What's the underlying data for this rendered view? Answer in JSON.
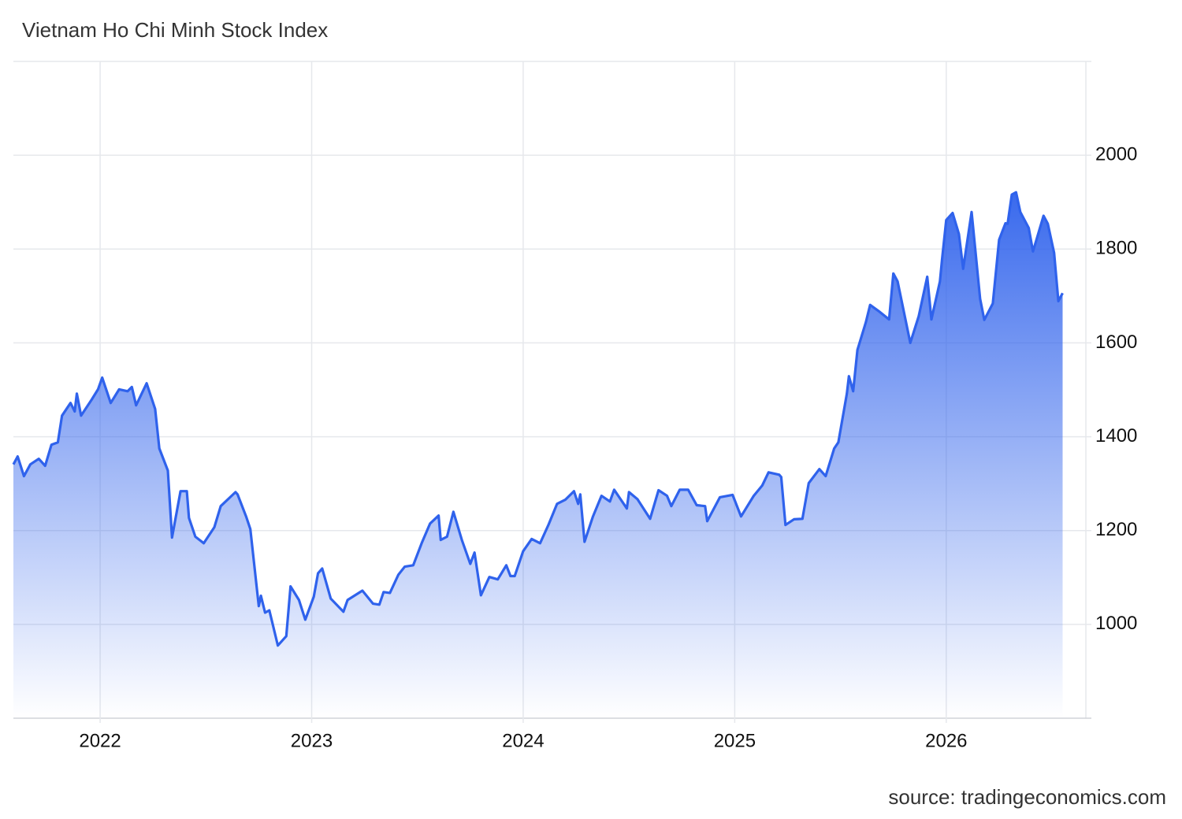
{
  "chart_data": {
    "type": "area",
    "title": "Vietnam Ho Chi Minh Stock Index",
    "source": "source: tradingeconomics.com",
    "color": "#2f62ec",
    "x": [
      2021.59,
      2021.61,
      2021.64,
      2021.67,
      2021.71,
      2021.74,
      2021.77,
      2021.8,
      2021.82,
      2021.86,
      2021.88,
      2021.89,
      2021.91,
      2021.96,
      2021.99,
      2022.01,
      2022.05,
      2022.09,
      2022.13,
      2022.15,
      2022.17,
      2022.22,
      2022.26,
      2022.28,
      2022.32,
      2022.34,
      2022.38,
      2022.41,
      2022.42,
      2022.45,
      2022.49,
      2022.54,
      2022.57,
      2022.64,
      2022.65,
      2022.69,
      2022.71,
      2022.75,
      2022.76,
      2022.78,
      2022.8,
      2022.84,
      2022.88,
      2022.9,
      2022.94,
      2022.97,
      2023.01,
      2023.03,
      2023.05,
      2023.09,
      2023.15,
      2023.17,
      2023.24,
      2023.29,
      2023.32,
      2023.34,
      2023.37,
      2023.41,
      2023.44,
      2023.48,
      2023.52,
      2023.56,
      2023.6,
      2023.61,
      2023.64,
      2023.67,
      2023.71,
      2023.75,
      2023.77,
      2023.8,
      2023.84,
      2023.88,
      2023.92,
      2023.94,
      2023.96,
      2024.0,
      2024.04,
      2024.08,
      2024.12,
      2024.16,
      2024.2,
      2024.24,
      2024.26,
      2024.27,
      2024.29,
      2024.33,
      2024.37,
      2024.41,
      2024.43,
      2024.49,
      2024.5,
      2024.54,
      2024.6,
      2024.64,
      2024.68,
      2024.7,
      2024.74,
      2024.78,
      2024.82,
      2024.86,
      2024.87,
      2024.93,
      2024.99,
      2025.03,
      2025.09,
      2025.13,
      2025.16,
      2025.21,
      2025.22,
      2025.24,
      2025.28,
      2025.32,
      2025.35,
      2025.4,
      2025.43,
      2025.47,
      2025.49,
      2025.53,
      2025.54,
      2025.56,
      2025.58,
      2025.62,
      2025.64,
      2025.68,
      2025.73,
      2025.75,
      2025.77,
      2025.83,
      2025.87,
      2025.91,
      2025.93,
      2025.97,
      2025.98,
      2026.0,
      2026.03,
      2026.06,
      2026.08,
      2026.12,
      2026.16,
      2026.18,
      2026.22,
      2026.25,
      2026.28,
      2026.29,
      2026.31,
      2026.33,
      2026.35,
      2026.39,
      2026.41,
      2026.46,
      2026.48,
      2026.51,
      2026.53,
      2026.55
    ],
    "values": [
      1341,
      1358,
      1316,
      1341,
      1353,
      1338,
      1383,
      1388,
      1445,
      1472,
      1454,
      1492,
      1445,
      1479,
      1501,
      1526,
      1472,
      1501,
      1497,
      1506,
      1467,
      1514,
      1459,
      1375,
      1328,
      1185,
      1284,
      1284,
      1227,
      1187,
      1173,
      1207,
      1252,
      1282,
      1277,
      1230,
      1203,
      1039,
      1061,
      1025,
      1030,
      955,
      975,
      1081,
      1052,
      1010,
      1059,
      1109,
      1119,
      1055,
      1027,
      1052,
      1072,
      1044,
      1042,
      1069,
      1067,
      1106,
      1123,
      1126,
      1173,
      1215,
      1232,
      1180,
      1187,
      1240,
      1180,
      1129,
      1153,
      1062,
      1101,
      1096,
      1126,
      1103,
      1103,
      1156,
      1182,
      1173,
      1213,
      1257,
      1266,
      1284,
      1257,
      1277,
      1176,
      1230,
      1274,
      1262,
      1287,
      1247,
      1282,
      1267,
      1225,
      1286,
      1274,
      1252,
      1287,
      1287,
      1254,
      1252,
      1220,
      1271,
      1276,
      1230,
      1274,
      1296,
      1324,
      1319,
      1314,
      1212,
      1224,
      1225,
      1301,
      1331,
      1316,
      1375,
      1388,
      1492,
      1529,
      1497,
      1585,
      1644,
      1681,
      1668,
      1650,
      1748,
      1731,
      1600,
      1657,
      1741,
      1650,
      1731,
      1778,
      1862,
      1877,
      1832,
      1758,
      1879,
      1694,
      1649,
      1684,
      1820,
      1855,
      1854,
      1916,
      1921,
      1879,
      1845,
      1795,
      1871,
      1854,
      1792,
      1689,
      1706
    ],
    "xlim": [
      2021.59,
      2026.66
    ],
    "xticks": [
      2022,
      2023,
      2024,
      2025,
      2026
    ],
    "ylim": [
      800,
      2200
    ],
    "yticks": [
      1000,
      1200,
      1400,
      1600,
      1800,
      2000
    ],
    "grid": true
  }
}
